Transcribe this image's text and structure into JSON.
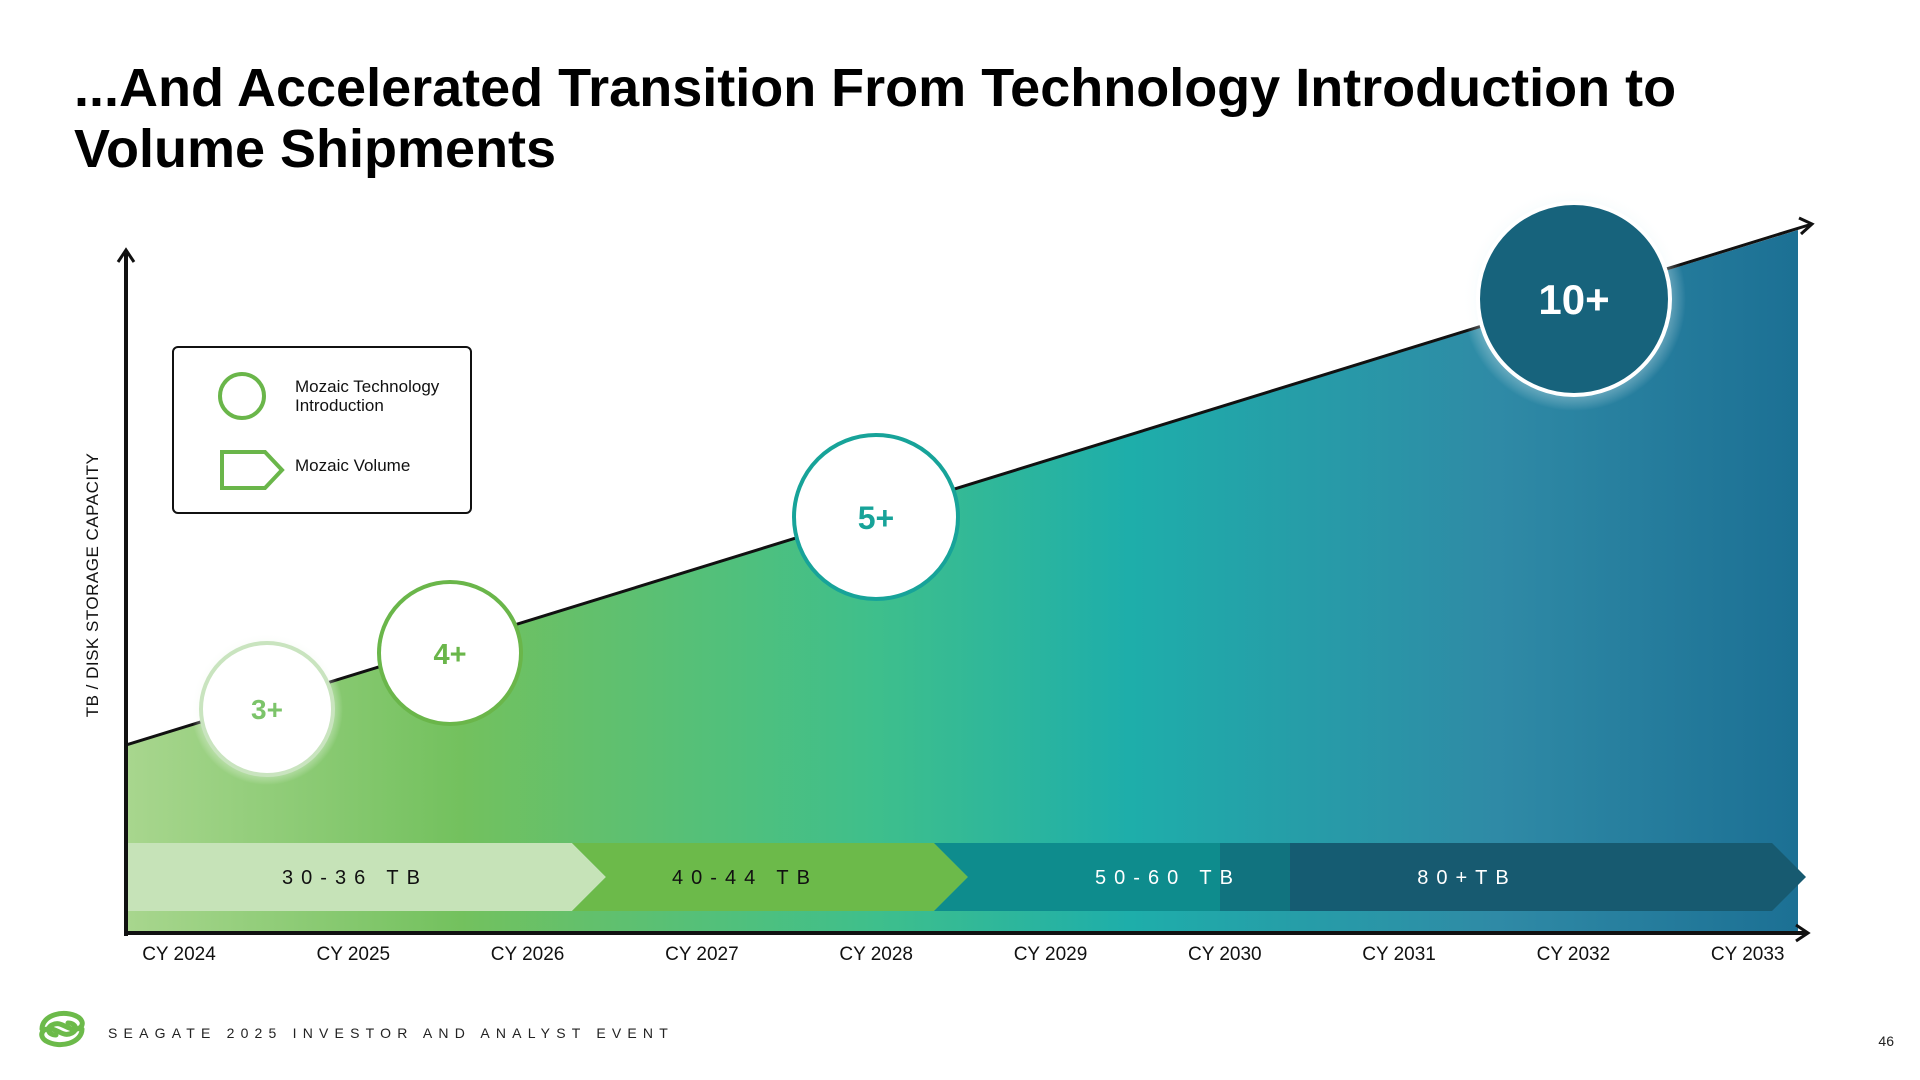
{
  "slide": {
    "title": "...And Accelerated Transition From Technology Introduction to Volume Shipments",
    "footer": "SEAGATE 2025 INVESTOR AND ANALYST EVENT",
    "page_number": "46"
  },
  "legend": {
    "introduction_label_line1": "Mozaic Technology",
    "introduction_label_line2": "Introduction",
    "volume_label": "Mozaic Volume"
  },
  "chart_data": {
    "type": "area",
    "ylabel": "TB / DISK STORAGE CAPACITY",
    "xlabel": "",
    "categories": [
      "CY 2024",
      "CY 2025",
      "CY 2026",
      "CY 2027",
      "CY 2028",
      "CY 2029",
      "CY 2030",
      "CY 2031",
      "CY 2032",
      "CY 2033"
    ],
    "trend": "rising",
    "introductions": [
      {
        "label": "3+",
        "year": "CY 2024",
        "color": "#7cc46a"
      },
      {
        "label": "4+",
        "year": "CY 2025",
        "color": "#6ab64a"
      },
      {
        "label": "5+",
        "year": "CY 2028",
        "color": "#17a399"
      },
      {
        "label": "10+",
        "year": "CY 2032",
        "color": "#ffffff"
      }
    ],
    "volume_bands": [
      {
        "label": "30-36 TB",
        "start": "CY 2024",
        "end": "CY 2026",
        "color": "#c6e3b8"
      },
      {
        "label": "40-44 TB",
        "start": "CY 2026",
        "end": "CY 2028",
        "color": "#6cba4a"
      },
      {
        "label": "50-60 TB",
        "start": "CY 2028",
        "end": "CY 2030",
        "color": "#0f8f8f"
      },
      {
        "label": "80+TB",
        "start": "CY 2030",
        "end": "CY 2033",
        "color": "#175a70"
      }
    ]
  },
  "colors": {
    "gradient": [
      "#a6d48c",
      "#6cbf5c",
      "#3cbf8e",
      "#1aaca8",
      "#2c8aa6",
      "#1d7193"
    ],
    "axis": "#111111"
  }
}
